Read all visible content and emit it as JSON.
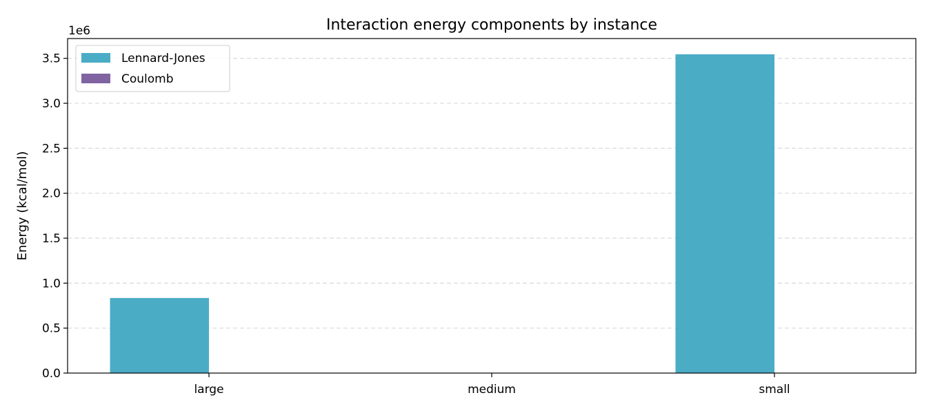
{
  "chart_data": {
    "type": "bar",
    "title": "Interaction energy components by instance",
    "xlabel": "",
    "ylabel": "Energy (kcal/mol)",
    "y_offset_label": "1e6",
    "categories": [
      "large",
      "medium",
      "small"
    ],
    "series": [
      {
        "name": "Lennard-Jones",
        "color": "#4bacc6",
        "values": [
          835000,
          0,
          3545000
        ]
      },
      {
        "name": "Coulomb",
        "color": "#8064a2",
        "values": [
          0,
          0,
          0
        ]
      }
    ],
    "ylim": [
      0,
      3720000
    ],
    "yticks": [
      0,
      500000,
      1000000,
      1500000,
      2000000,
      2500000,
      3000000,
      3500000
    ],
    "ytick_labels": [
      "0.0",
      "0.5",
      "1.0",
      "1.5",
      "2.0",
      "2.5",
      "3.0",
      "3.5"
    ],
    "grid": "y-dashed",
    "legend_position": "top-left"
  }
}
